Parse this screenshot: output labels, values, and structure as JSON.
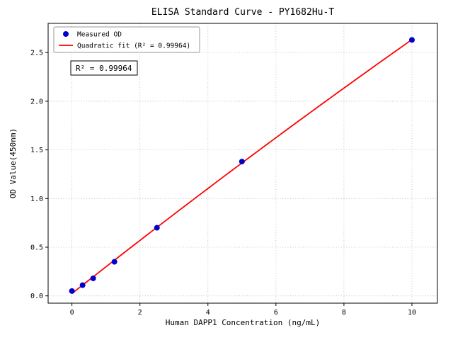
{
  "chart_data": {
    "type": "scatter",
    "title": "ELISA Standard Curve - PY1682Hu-T",
    "xlabel": "Human DAPP1 Concentration (ng/mL)",
    "ylabel": "OD Value(450nm)",
    "x": [
      0,
      0.313,
      0.625,
      1.25,
      2.5,
      5,
      10
    ],
    "y": [
      0.05,
      0.11,
      0.18,
      0.35,
      0.7,
      1.38,
      2.63
    ],
    "fit": {
      "type": "quadratic",
      "coefficients": {
        "a": -0.00148,
        "b": 0.2757,
        "c": 0.0242
      },
      "r_squared": "0.99964"
    },
    "xticks": [
      0,
      2,
      4,
      6,
      8,
      10
    ],
    "yticks": [
      0,
      0.5,
      1,
      1.5,
      2,
      2.5
    ],
    "xlim": [
      -0.7,
      10.75
    ],
    "ylim": [
      -0.075,
      2.8
    ],
    "grid": true,
    "legend": {
      "position": "upper-left",
      "entries": [
        {
          "label": "Measured OD",
          "marker": "dot",
          "color": "#0000cc"
        },
        {
          "label": "Quadratic fit (R² = 0.99964)",
          "marker": "line",
          "color": "#ff0000"
        }
      ]
    },
    "annotation": "R² = 0.99964",
    "colors": {
      "points": "#0000cc",
      "fit_line": "#ff0000",
      "grid": "#b5b5b5",
      "axis": "#000000",
      "legend_border": "#999999",
      "background": "#ffffff"
    }
  }
}
